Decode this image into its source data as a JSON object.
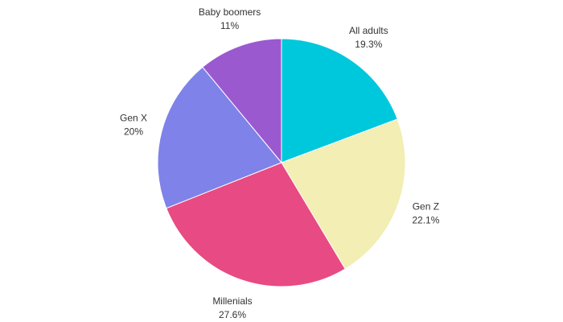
{
  "chart_data": {
    "type": "pie",
    "title": "",
    "slices": [
      {
        "label": "All adults",
        "value_label": "19.3%",
        "value": 19.3,
        "color": "#00C8DC"
      },
      {
        "label": "Gen Z",
        "value_label": "22.1%",
        "value": 22.1,
        "color": "#F2EEB4"
      },
      {
        "label": "Millenials",
        "value_label": "27.6%",
        "value": 27.6,
        "color": "#E84A83"
      },
      {
        "label": "Gen X",
        "value_label": "20%",
        "value": 20,
        "color": "#7F82E8"
      },
      {
        "label": "Baby boomers",
        "value_label": "11%",
        "value": 11,
        "color": "#9B59CF"
      }
    ],
    "start_angle": "12 o'clock",
    "direction": "clockwise",
    "legend": "none"
  }
}
